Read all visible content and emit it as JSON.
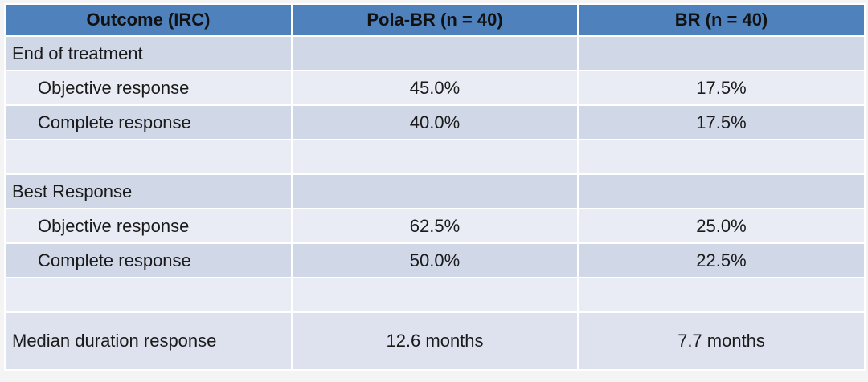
{
  "table": {
    "header": [
      "Outcome (IRC)",
      "Pola-BR (n = 40)",
      "BR (n = 40)"
    ],
    "rows": [
      [
        "End of treatment"
      ],
      [
        "Objective response",
        "45.0%",
        "17.5%"
      ],
      [
        "Complete response",
        "40.0%",
        "17.5%"
      ],
      [
        "Best Response"
      ],
      [
        "Objective response",
        "62.5%",
        "25.0%"
      ],
      [
        "Complete response",
        "50.0%",
        "22.5%"
      ],
      [
        "Median duration response",
        "12.6 months",
        "7.7 months"
      ]
    ]
  }
}
